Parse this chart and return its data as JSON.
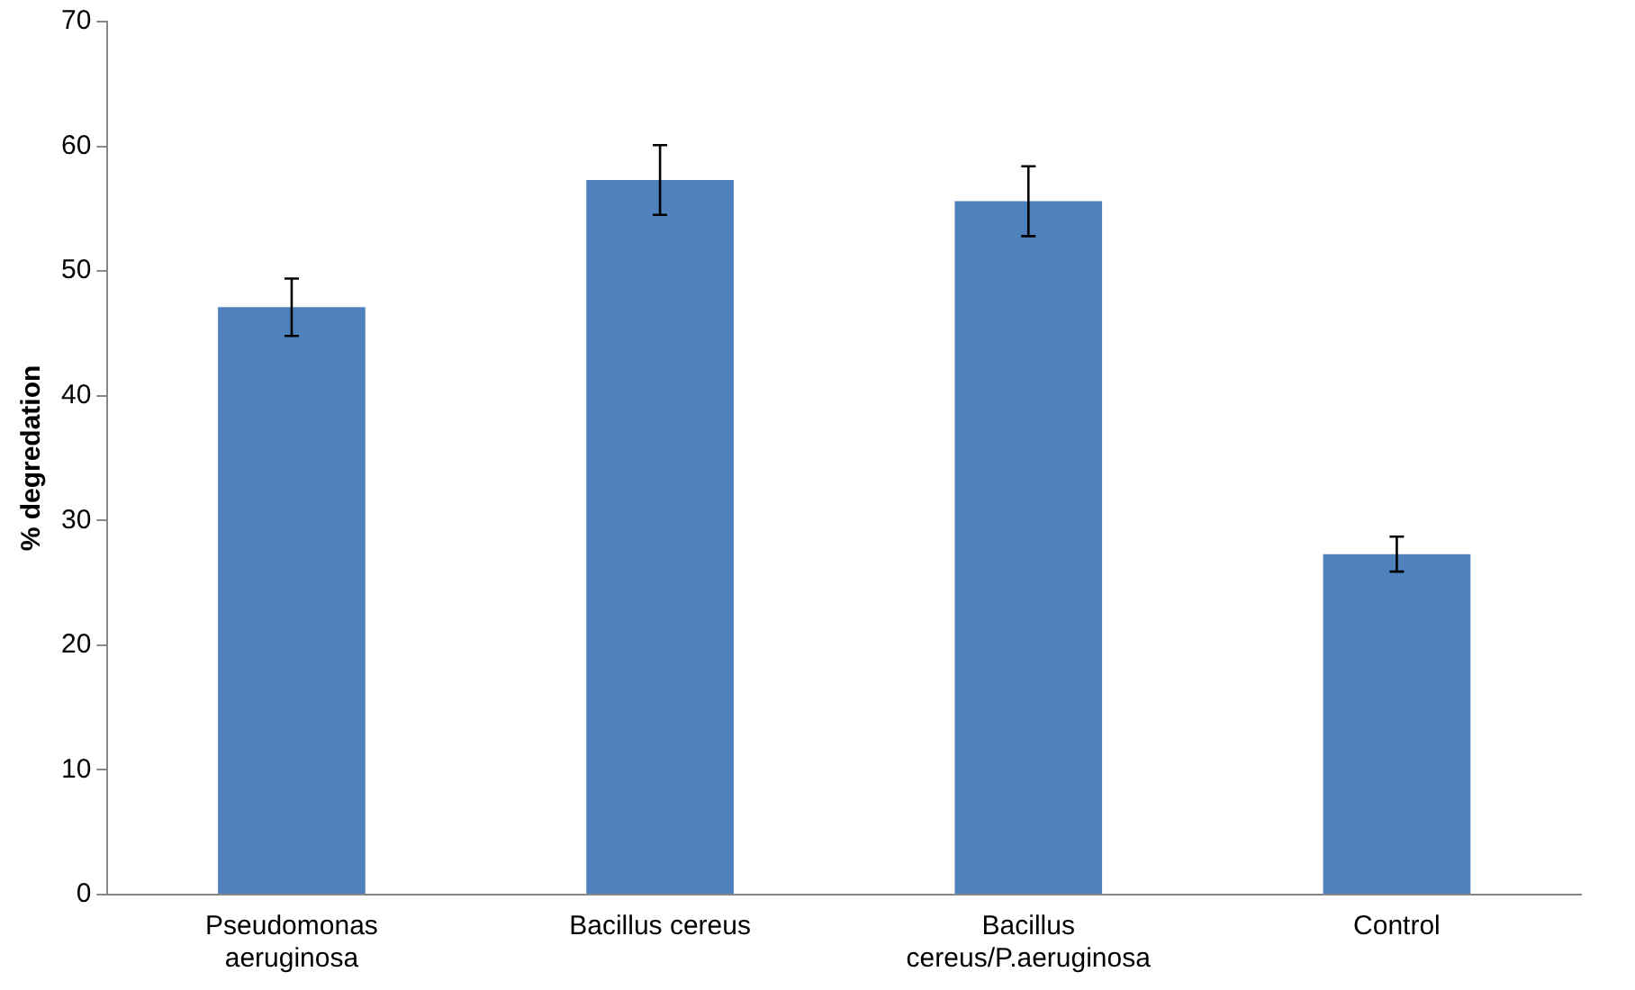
{
  "chart_data": {
    "type": "bar",
    "ylabel": "% degredation",
    "categories": [
      "Pseudomonas aeruginosa",
      "Bacillus cereus",
      "Bacillus cereus/P.aeruginosa",
      "Control"
    ],
    "values": [
      47.1,
      57.3,
      55.6,
      27.3
    ],
    "errors": [
      2.3,
      2.8,
      2.8,
      1.4
    ],
    "color": "#4f81bd",
    "ylim": [
      0,
      70
    ],
    "yticks": [
      0,
      10,
      20,
      30,
      40,
      50,
      60,
      70
    ],
    "grid": false,
    "legend": false
  }
}
